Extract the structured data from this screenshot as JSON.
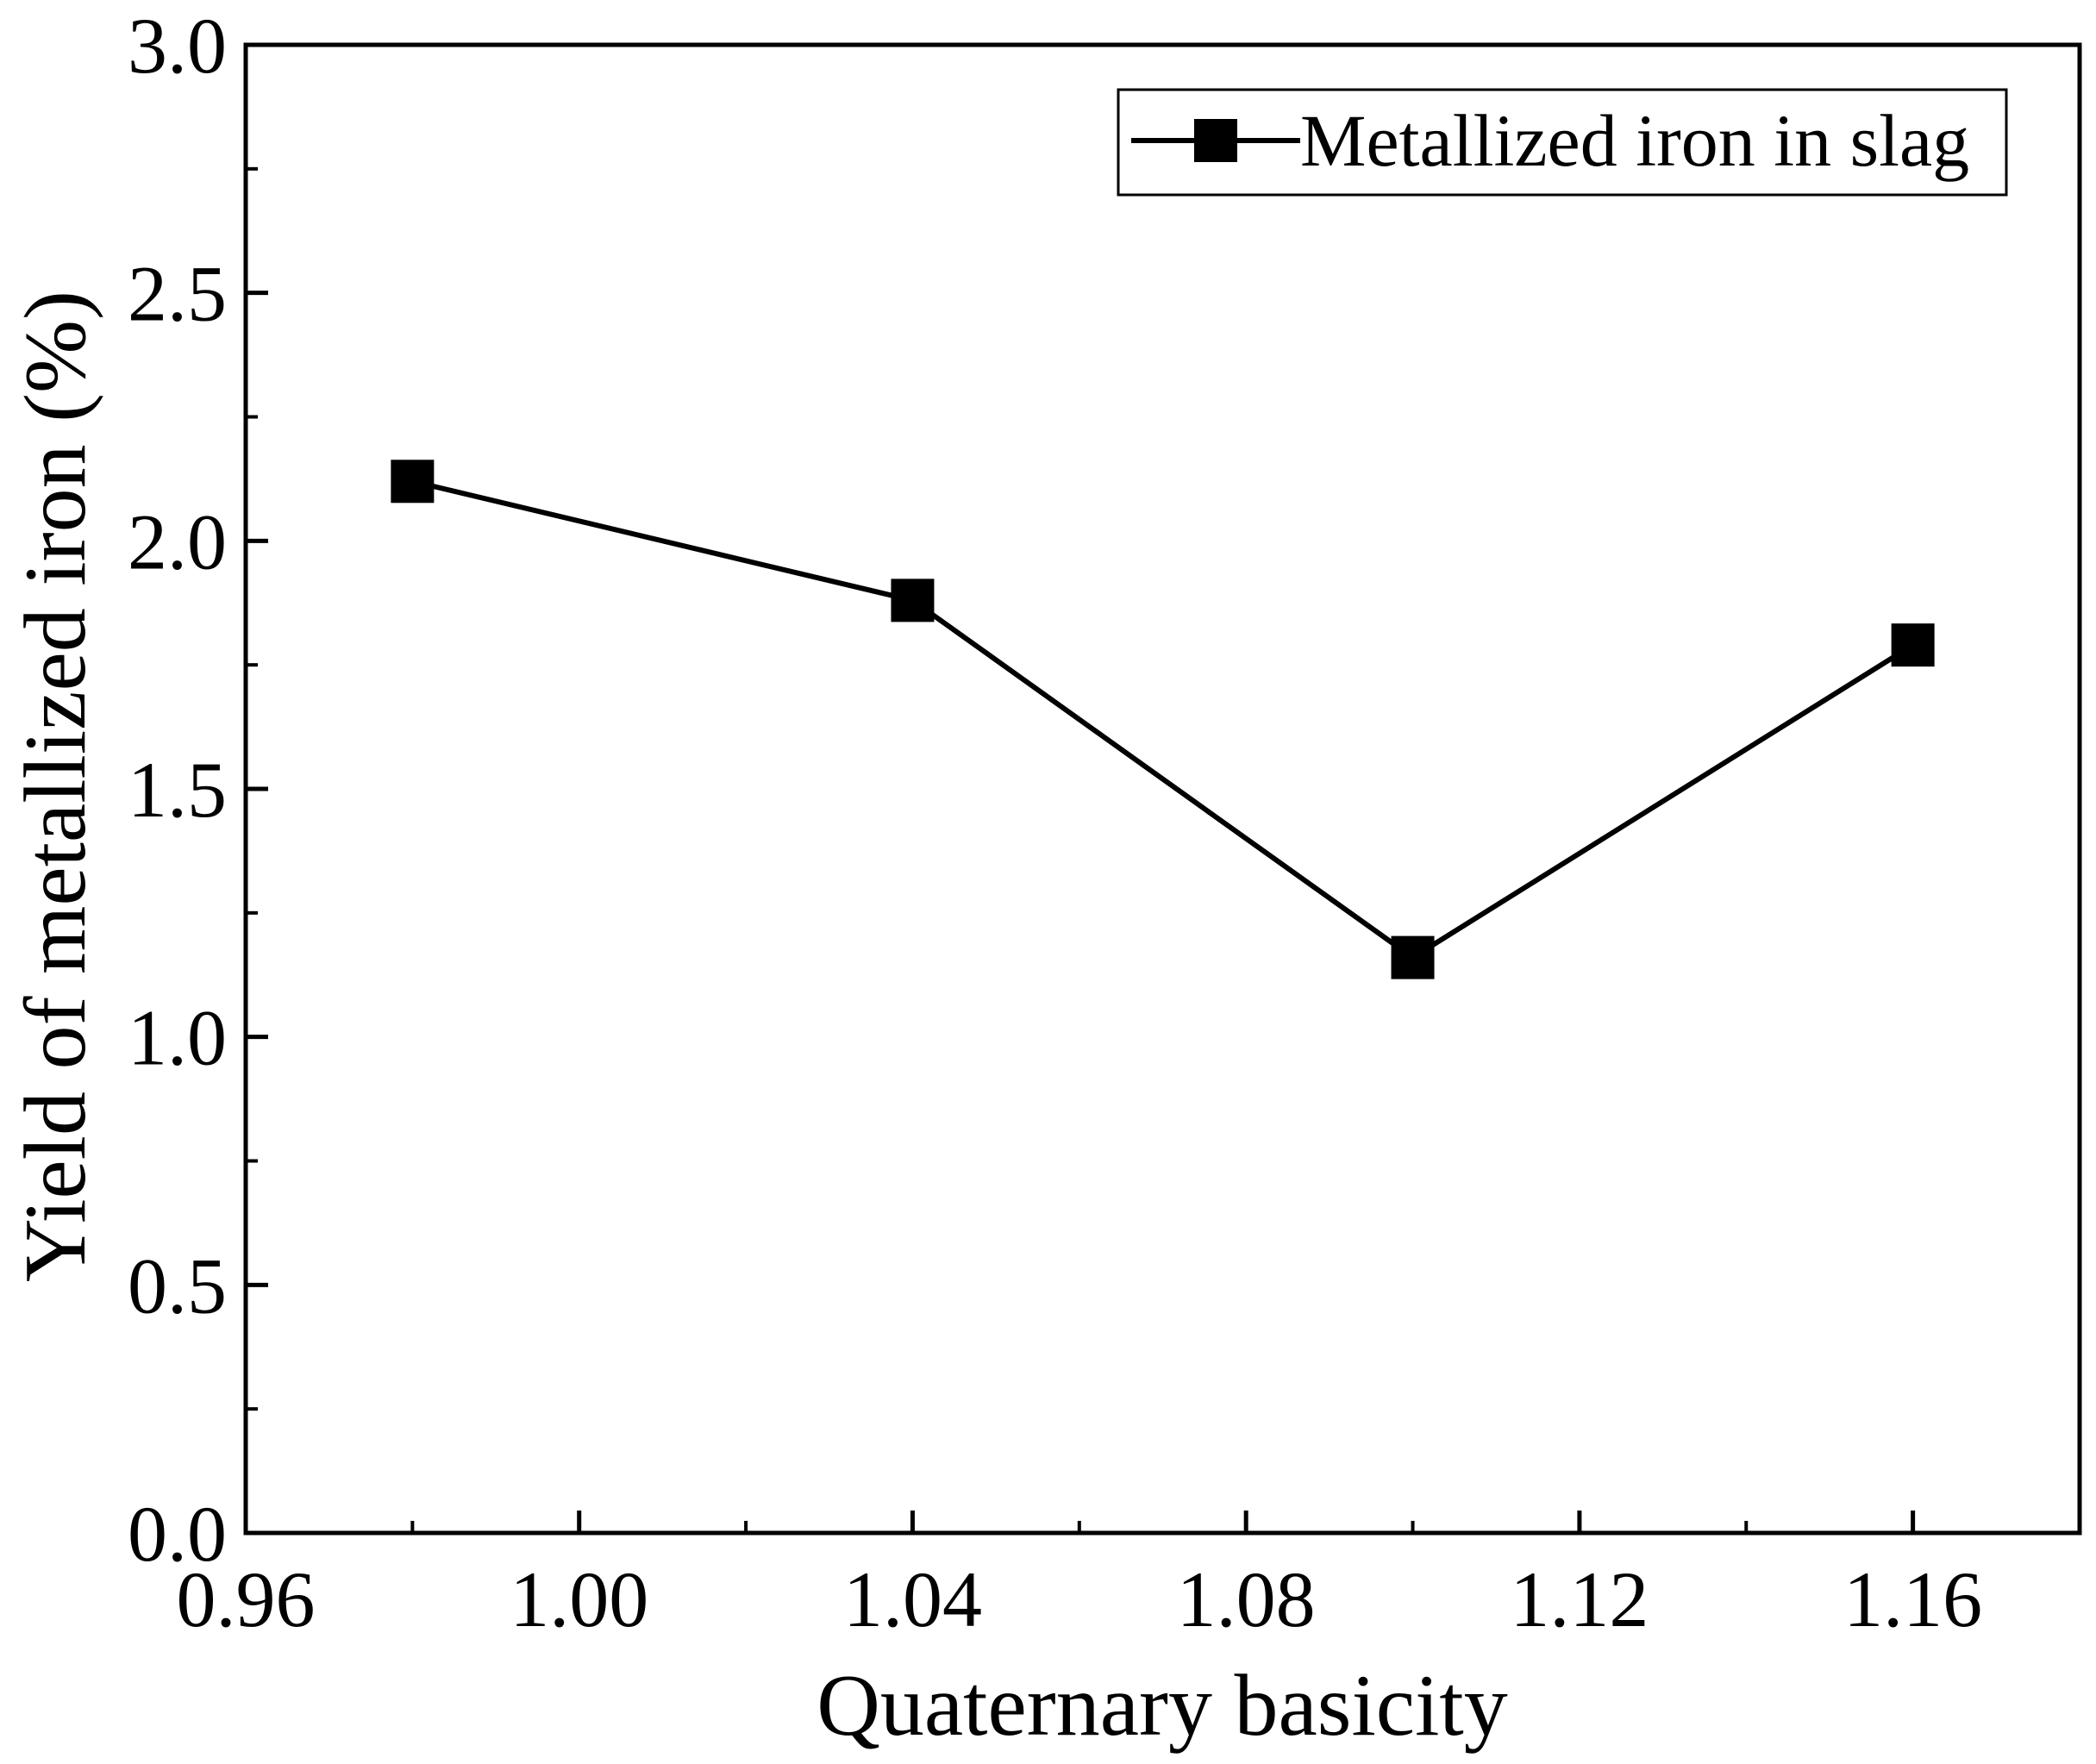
{
  "chart_data": {
    "type": "line",
    "title": "",
    "xlabel": "Quaternary basicity",
    "ylabel": "Yield of metallized iron (%)",
    "xlim": [
      0.96,
      1.18
    ],
    "ylim": [
      0.0,
      3.0
    ],
    "x_ticks": [
      0.96,
      1.0,
      1.04,
      1.08,
      1.12,
      1.16
    ],
    "x_tick_labels": [
      "0.96",
      "1.00",
      "1.04",
      "1.08",
      "1.12",
      "1.16"
    ],
    "x_minor_ticks": [
      0.98,
      1.02,
      1.06,
      1.1,
      1.14
    ],
    "y_ticks": [
      0.0,
      0.5,
      1.0,
      1.5,
      2.0,
      2.5,
      3.0
    ],
    "y_tick_labels": [
      "0.0",
      "0.5",
      "1.0",
      "1.5",
      "2.0",
      "2.5",
      "3.0"
    ],
    "y_minor_ticks": [
      0.25,
      0.75,
      1.25,
      1.75,
      2.25,
      2.75
    ],
    "grid": false,
    "legend_position": "top-right",
    "series": [
      {
        "name": "Metallized iron in slag",
        "marker": "square",
        "color": "#000000",
        "x": [
          0.98,
          1.04,
          1.1,
          1.16
        ],
        "y": [
          2.12,
          1.88,
          1.16,
          1.79
        ]
      }
    ]
  }
}
